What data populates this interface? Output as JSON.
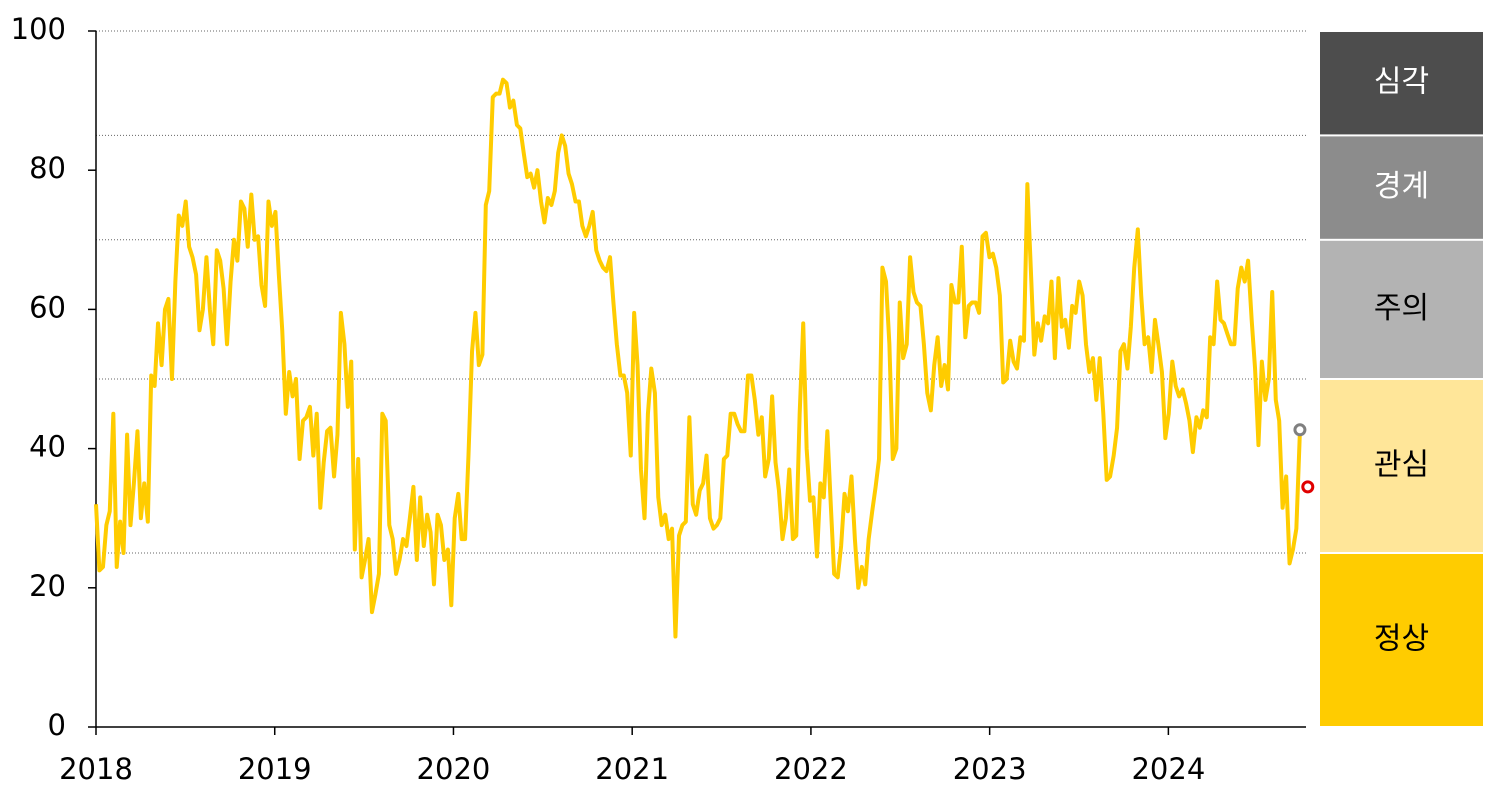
{
  "chart_data": {
    "type": "line",
    "xlim": [
      2018,
      2024.77
    ],
    "xticks": [
      2018,
      2019,
      2020,
      2021,
      2022,
      2023,
      2024
    ],
    "ylim": [
      0,
      100
    ],
    "yticks": [
      0,
      20,
      40,
      60,
      80,
      100
    ],
    "bands": [
      {
        "label": "정상",
        "from": 0,
        "to": 25,
        "color": "#ffcc00",
        "text_color": "#000000"
      },
      {
        "label": "관심",
        "from": 25,
        "to": 50,
        "color": "#ffe699",
        "text_color": "#000000"
      },
      {
        "label": "주의",
        "from": 50,
        "to": 70,
        "color": "#b3b3b3",
        "text_color": "#000000"
      },
      {
        "label": "경계",
        "from": 70,
        "to": 85,
        "color": "#8c8c8c",
        "text_color": "#ffffff"
      },
      {
        "label": "심각",
        "from": 85,
        "to": 100,
        "color": "#4d4d4d",
        "text_color": "#ffffff"
      }
    ],
    "points": [
      {
        "x": 2024.736,
        "value": 42.7,
        "color": "#808080"
      },
      {
        "x": 2024.78,
        "value": 34.5,
        "color": "#e00000"
      }
    ],
    "series": [
      {
        "color": "#ffcc00",
        "x": [
          2018.0,
          2018.019,
          2018.039,
          2018.058,
          2018.077,
          2018.097,
          2018.116,
          2018.135,
          2018.154,
          2018.174,
          2018.193,
          2018.212,
          2018.232,
          2018.251,
          2018.27,
          2018.29,
          2018.309,
          2018.328,
          2018.347,
          2018.367,
          2018.386,
          2018.405,
          2018.425,
          2018.444,
          2018.463,
          2018.483,
          2018.502,
          2018.521,
          2018.54,
          2018.56,
          2018.579,
          2018.598,
          2018.618,
          2018.637,
          2018.656,
          2018.676,
          2018.695,
          2018.714,
          2018.733,
          2018.753,
          2018.772,
          2018.791,
          2018.811,
          2018.83,
          2018.849,
          2018.869,
          2018.888,
          2018.907,
          2018.926,
          2018.946,
          2018.965,
          2018.984,
          2019.004,
          2019.023,
          2019.042,
          2019.062,
          2019.081,
          2019.1,
          2019.119,
          2019.139,
          2019.158,
          2019.177,
          2019.197,
          2019.216,
          2019.235,
          2019.255,
          2019.274,
          2019.293,
          2019.312,
          2019.332,
          2019.351,
          2019.37,
          2019.39,
          2019.409,
          2019.428,
          2019.448,
          2019.467,
          2019.486,
          2019.505,
          2019.525,
          2019.544,
          2019.563,
          2019.583,
          2019.602,
          2019.621,
          2019.641,
          2019.66,
          2019.679,
          2019.698,
          2019.718,
          2019.737,
          2019.756,
          2019.776,
          2019.795,
          2019.814,
          2019.834,
          2019.853,
          2019.872,
          2019.891,
          2019.911,
          2019.93,
          2019.949,
          2019.969,
          2019.988,
          2020.007,
          2020.027,
          2020.046,
          2020.065,
          2020.084,
          2020.104,
          2020.123,
          2020.142,
          2020.162,
          2020.181,
          2020.2,
          2020.22,
          2020.239,
          2020.258,
          2020.277,
          2020.297,
          2020.316,
          2020.335,
          2020.355,
          2020.374,
          2020.393,
          2020.413,
          2020.432,
          2020.451,
          2020.47,
          2020.49,
          2020.509,
          2020.528,
          2020.548,
          2020.567,
          2020.586,
          2020.606,
          2020.625,
          2020.644,
          2020.663,
          2020.683,
          2020.702,
          2020.721,
          2020.741,
          2020.76,
          2020.779,
          2020.799,
          2020.818,
          2020.837,
          2020.856,
          2020.876,
          2020.895,
          2020.914,
          2020.934,
          2020.953,
          2020.972,
          2020.992,
          2021.011,
          2021.03,
          2021.049,
          2021.069,
          2021.088,
          2021.107,
          2021.127,
          2021.146,
          2021.165,
          2021.185,
          2021.204,
          2021.223,
          2021.242,
          2021.262,
          2021.281,
          2021.3,
          2021.32,
          2021.339,
          2021.358,
          2021.378,
          2021.397,
          2021.416,
          2021.435,
          2021.455,
          2021.474,
          2021.493,
          2021.513,
          2021.532,
          2021.551,
          2021.571,
          2021.59,
          2021.609,
          2021.628,
          2021.648,
          2021.667,
          2021.686,
          2021.706,
          2021.725,
          2021.744,
          2021.764,
          2021.783,
          2021.802,
          2021.821,
          2021.841,
          2021.86,
          2021.879,
          2021.899,
          2021.918,
          2021.937,
          2021.957,
          2021.976,
          2021.995,
          2022.014,
          2022.034,
          2022.053,
          2022.072,
          2022.092,
          2022.111,
          2022.13,
          2022.15,
          2022.169,
          2022.188,
          2022.207,
          2022.227,
          2022.246,
          2022.265,
          2022.285,
          2022.304,
          2022.323,
          2022.343,
          2022.362,
          2022.381,
          2022.4,
          2022.42,
          2022.439,
          2022.458,
          2022.478,
          2022.497,
          2022.516,
          2022.536,
          2022.555,
          2022.574,
          2022.593,
          2022.613,
          2022.632,
          2022.651,
          2022.671,
          2022.69,
          2022.709,
          2022.729,
          2022.748,
          2022.767,
          2022.786,
          2022.806,
          2022.825,
          2022.844,
          2022.864,
          2022.883,
          2022.902,
          2022.922,
          2022.941,
          2022.96,
          2022.979,
          2022.999,
          2023.018,
          2023.037,
          2023.057,
          2023.076,
          2023.095,
          2023.115,
          2023.134,
          2023.153,
          2023.172,
          2023.192,
          2023.211,
          2023.23,
          2023.25,
          2023.269,
          2023.288,
          2023.308,
          2023.327,
          2023.346,
          2023.365,
          2023.385,
          2023.404,
          2023.423,
          2023.443,
          2023.462,
          2023.481,
          2023.501,
          2023.52,
          2023.539,
          2023.558,
          2023.578,
          2023.597,
          2023.616,
          2023.636,
          2023.655,
          2023.674,
          2023.694,
          2023.713,
          2023.732,
          2023.751,
          2023.771,
          2023.79,
          2023.809,
          2023.829,
          2023.848,
          2023.867,
          2023.887,
          2023.906,
          2023.925,
          2023.944,
          2023.964,
          2023.983,
          2024.002,
          2024.022,
          2024.041,
          2024.06,
          2024.08,
          2024.099,
          2024.118,
          2024.137,
          2024.157,
          2024.176,
          2024.195,
          2024.215,
          2024.234,
          2024.253,
          2024.273,
          2024.292,
          2024.311,
          2024.33,
          2024.35,
          2024.369,
          2024.388,
          2024.408,
          2024.427,
          2024.446,
          2024.466,
          2024.485,
          2024.504,
          2024.523,
          2024.543,
          2024.562,
          2024.581,
          2024.601,
          2024.62,
          2024.639,
          2024.659,
          2024.678,
          2024.697,
          2024.716,
          2024.736
        ],
        "values": [
          32,
          22.5,
          23,
          29,
          31,
          45,
          23,
          29.5,
          25,
          42,
          29,
          35,
          42.5,
          30,
          35,
          29.5,
          50.5,
          49,
          58,
          52,
          60,
          61.5,
          50,
          64,
          73.5,
          72,
          75.5,
          69,
          67.5,
          65,
          57,
          60,
          67.5,
          60,
          55,
          68.5,
          67,
          63,
          55,
          64,
          70,
          67,
          75.5,
          74.5,
          69,
          76.5,
          70,
          70.5,
          63.5,
          60.5,
          75.5,
          72,
          74,
          65,
          57,
          45,
          51,
          47.5,
          50,
          38.5,
          44,
          44.5,
          46,
          39,
          45,
          31.5,
          38,
          42.5,
          43,
          36,
          42,
          59.5,
          55,
          46,
          52.5,
          25.5,
          38.5,
          21.5,
          24,
          27,
          16.5,
          19,
          22,
          45,
          44,
          29,
          27,
          22,
          24,
          27,
          26,
          30,
          34.5,
          24,
          33,
          26,
          30.5,
          28,
          20.5,
          30.5,
          29,
          24,
          25.5,
          17.5,
          30,
          33.5,
          27,
          27,
          39,
          54,
          59.5,
          52,
          53.5,
          75,
          77,
          90.5,
          91,
          91,
          93,
          92.5,
          89,
          90,
          86.5,
          86,
          82.5,
          79,
          79.5,
          77.5,
          80,
          75.5,
          72.5,
          76,
          75,
          77,
          82.5,
          85,
          83.5,
          79.5,
          78,
          75.5,
          75.5,
          72,
          70.5,
          72,
          74,
          68.5,
          67,
          66,
          65.5,
          67.5,
          61,
          55,
          50.5,
          50.5,
          48,
          39,
          59.5,
          52,
          37,
          30,
          45,
          51.5,
          48,
          33,
          29,
          30.5,
          27,
          28.5,
          13,
          27.5,
          29,
          29.5,
          44.5,
          32,
          30.5,
          34,
          35,
          39,
          30,
          28.5,
          29,
          30,
          38.5,
          39,
          45,
          45,
          43.5,
          42.5,
          42.5,
          50.5,
          50.5,
          47,
          42,
          44.5,
          36,
          38.5,
          47.5,
          38,
          34,
          27,
          30,
          37,
          27,
          27.5,
          45,
          58,
          40,
          32.5,
          33,
          24.5,
          35,
          33,
          42.5,
          32,
          22,
          21.5,
          26,
          33.5,
          31,
          36,
          27,
          20,
          23,
          20.5,
          27,
          31,
          34.5,
          38.5,
          66,
          64,
          55,
          38.5,
          40,
          61,
          53,
          55,
          67.5,
          62.5,
          61,
          60.5,
          55,
          48,
          45.5,
          52,
          56,
          49,
          52,
          48.5,
          63.5,
          61,
          61,
          69,
          56,
          60.5,
          61,
          61,
          59.5,
          70.5,
          71,
          67.5,
          68,
          66,
          62,
          49.5,
          50,
          55.5,
          52.5,
          51.5,
          56,
          55.5,
          78,
          66,
          53.5,
          58,
          55.5,
          59,
          58,
          64,
          53,
          64.5,
          57.5,
          58.5,
          54.5,
          60.5,
          59.5,
          64,
          62,
          55,
          51,
          53,
          47,
          53,
          45,
          35.5,
          36,
          39,
          43,
          54,
          55,
          51.5,
          57.5,
          66,
          71.5,
          62,
          55,
          56,
          51,
          58.5,
          55,
          51,
          41.5,
          45,
          52.5,
          49,
          47.5,
          48.5,
          46.5,
          44,
          39.5,
          44.5,
          43,
          45.5,
          44.5,
          56,
          55,
          64,
          58.5,
          58,
          56.5,
          55,
          55,
          63,
          66,
          64,
          67,
          58.5,
          51.5,
          40.5,
          52.5,
          47,
          50,
          62.5,
          47,
          44,
          31.5,
          36,
          23.5,
          25.5,
          28.5,
          42.5
        ]
      }
    ]
  }
}
